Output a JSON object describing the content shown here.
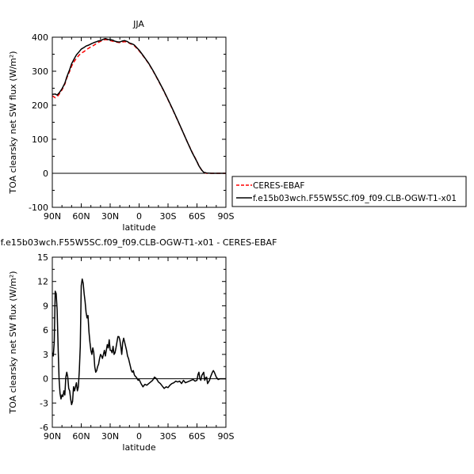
{
  "chart_data": [
    {
      "type": "line",
      "title": "JJA",
      "xlabel": "latitude",
      "ylabel": "TOA clearsky net SW flux (W/m²)",
      "xlim": [
        90,
        -90
      ],
      "ylim": [
        -100,
        400
      ],
      "xticks": [
        {
          "value": 90,
          "label": "90N"
        },
        {
          "value": 60,
          "label": "60N"
        },
        {
          "value": 30,
          "label": "30N"
        },
        {
          "value": 0,
          "label": "0"
        },
        {
          "value": -30,
          "label": "30S"
        },
        {
          "value": -60,
          "label": "60S"
        },
        {
          "value": -90,
          "label": "90S"
        }
      ],
      "yticks": [
        -100,
        0,
        100,
        200,
        300,
        400
      ],
      "legend_placement": "right",
      "series": [
        {
          "name": "CERES-EBAF",
          "color": "#ff0000",
          "dash": true,
          "x": [
            90,
            87,
            85,
            83,
            80,
            77,
            75,
            72,
            70,
            67,
            65,
            62,
            60,
            57,
            55,
            52,
            50,
            47,
            45,
            42,
            40,
            37,
            35,
            32,
            30,
            27,
            25,
            22,
            20,
            17,
            15,
            12,
            10,
            7,
            5,
            0,
            -5,
            -10,
            -15,
            -20,
            -25,
            -30,
            -35,
            -40,
            -45,
            -50,
            -55,
            -60,
            -62,
            -65,
            -67,
            -70,
            -75,
            -80,
            -85,
            -90
          ],
          "y": [
            228,
            222,
            225,
            232,
            245,
            262,
            280,
            300,
            315,
            330,
            338,
            348,
            353,
            358,
            363,
            368,
            372,
            376,
            380,
            385,
            388,
            392,
            393,
            392,
            390,
            388,
            386,
            385,
            384,
            386,
            387,
            386,
            382,
            378,
            375,
            360,
            342,
            322,
            298,
            272,
            245,
            216,
            186,
            155,
            124,
            92,
            62,
            35,
            22,
            9,
            3,
            0,
            0,
            0,
            0,
            0
          ]
        },
        {
          "name": "f.e15b03wch.F55W5SC.f09_f09.CLB-OGW-T1-x01",
          "color": "#000000",
          "dash": false,
          "x": [
            90,
            87,
            85,
            83,
            80,
            77,
            75,
            72,
            70,
            67,
            65,
            62,
            60,
            57,
            55,
            52,
            50,
            47,
            45,
            42,
            40,
            37,
            35,
            32,
            30,
            27,
            25,
            22,
            20,
            17,
            15,
            12,
            10,
            7,
            5,
            0,
            -5,
            -10,
            -15,
            -20,
            -25,
            -30,
            -35,
            -40,
            -45,
            -50,
            -55,
            -60,
            -62,
            -65,
            -67,
            -70,
            -75,
            -80,
            -85,
            -90
          ],
          "y": [
            232,
            233,
            230,
            236,
            248,
            265,
            283,
            305,
            322,
            338,
            348,
            358,
            365,
            370,
            374,
            377,
            380,
            384,
            386,
            389,
            390,
            394,
            396,
            393,
            393,
            391,
            388,
            386,
            386,
            389,
            390,
            387,
            383,
            380,
            377,
            362,
            343,
            323,
            299,
            273,
            246,
            217,
            187,
            156,
            124,
            92,
            61,
            34,
            22,
            9,
            3,
            1,
            0,
            0,
            0,
            0
          ]
        }
      ]
    },
    {
      "type": "line",
      "title": "f.e15b03wch.F55W5SC.f09_f09.CLB-OGW-T1-x01 - CERES-EBAF",
      "xlabel": "latitude",
      "ylabel": "TOA clearsky net SW flux (W/m²)",
      "xlim": [
        90,
        -90
      ],
      "ylim": [
        -6,
        15
      ],
      "xticks": [
        {
          "value": 90,
          "label": "90N"
        },
        {
          "value": 60,
          "label": "60N"
        },
        {
          "value": 30,
          "label": "30N"
        },
        {
          "value": 0,
          "label": "0"
        },
        {
          "value": -30,
          "label": "30S"
        },
        {
          "value": -60,
          "label": "60S"
        },
        {
          "value": -90,
          "label": "90S"
        }
      ],
      "yticks": [
        -6,
        -3,
        0,
        3,
        6,
        9,
        12,
        15
      ],
      "series": [
        {
          "color": "#000000",
          "dash": false,
          "x": [
            90,
            89,
            88,
            87,
            86,
            85,
            84,
            83,
            82,
            81,
            80,
            79,
            78,
            77,
            76,
            75,
            74,
            73,
            72,
            71,
            70,
            69,
            68,
            67,
            66,
            65,
            64,
            63,
            62,
            61,
            60,
            59,
            58,
            57,
            56,
            55,
            54,
            53,
            52,
            51,
            50,
            49,
            48,
            47,
            46,
            45,
            44,
            43,
            42,
            41,
            40,
            39,
            38,
            37,
            36,
            35,
            34,
            33,
            32,
            31,
            30,
            29,
            28,
            27,
            26,
            25,
            24,
            23,
            22,
            21,
            20,
            19,
            18,
            17,
            16,
            15,
            14,
            13,
            12,
            11,
            10,
            9,
            8,
            7,
            6,
            5,
            4,
            3,
            2,
            1,
            0,
            -2,
            -4,
            -6,
            -8,
            -10,
            -12,
            -14,
            -16,
            -18,
            -20,
            -22,
            -24,
            -26,
            -28,
            -30,
            -32,
            -34,
            -36,
            -38,
            -40,
            -42,
            -44,
            -46,
            -48,
            -50,
            -52,
            -54,
            -56,
            -58,
            -60,
            -61,
            -62,
            -63,
            -64,
            -65,
            -66,
            -67,
            -68,
            -69,
            -70,
            -71,
            -72,
            -73,
            -74,
            -75,
            -76,
            -77,
            -78,
            -80,
            -82,
            -84,
            -86,
            -88,
            -90
          ],
          "y": [
            3.2,
            2.8,
            4.5,
            10.8,
            10.5,
            8.5,
            4.0,
            0.0,
            -1.8,
            -2.5,
            -2.0,
            -2.2,
            -1.5,
            -2.0,
            0.2,
            0.8,
            0.2,
            -1.2,
            -1.5,
            -2.5,
            -3.2,
            -2.8,
            -1.0,
            -1.5,
            -1.0,
            -0.5,
            -1.5,
            -1.0,
            1.0,
            4.0,
            11.5,
            12.3,
            11.8,
            10.5,
            9.5,
            8.2,
            7.5,
            7.8,
            5.8,
            4.5,
            3.5,
            3.0,
            3.8,
            3.2,
            1.5,
            0.8,
            1.0,
            1.5,
            1.8,
            2.5,
            3.0,
            2.8,
            2.5,
            3.0,
            3.5,
            2.8,
            3.5,
            4.2,
            3.8,
            4.8,
            3.5,
            3.5,
            3.2,
            4.0,
            3.0,
            3.2,
            3.8,
            4.5,
            5.2,
            5.2,
            4.8,
            4.0,
            3.0,
            4.5,
            5.0,
            4.5,
            4.0,
            3.5,
            2.8,
            2.5,
            2.0,
            1.5,
            1.0,
            0.8,
            1.0,
            0.5,
            0.3,
            0.2,
            0.0,
            -0.2,
            -0.1,
            -0.6,
            -1.0,
            -0.7,
            -0.8,
            -0.6,
            -0.4,
            -0.2,
            0.2,
            0.0,
            -0.4,
            -0.6,
            -0.9,
            -1.2,
            -1.0,
            -1.1,
            -0.8,
            -0.6,
            -0.5,
            -0.3,
            -0.4,
            -0.3,
            -0.6,
            -0.2,
            -0.5,
            -0.4,
            -0.3,
            -0.2,
            -0.1,
            -0.3,
            -0.2,
            0.5,
            0.8,
            0.0,
            -0.2,
            0.4,
            0.6,
            0.8,
            -0.2,
            0.1,
            0.2,
            -0.6,
            -0.4,
            -0.2,
            0.2,
            0.5,
            0.8,
            1.0,
            0.8,
            0.2,
            -0.1,
            0.0,
            0.0,
            0.0,
            0.0
          ]
        }
      ]
    }
  ]
}
